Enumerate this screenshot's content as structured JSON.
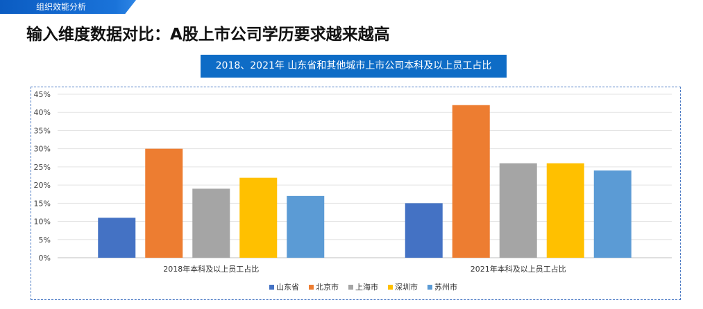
{
  "section_tag": "组织效能分析",
  "page_title": "输入维度数据对比：A股上市公司学历要求越来越高",
  "chart_data": {
    "type": "bar",
    "title": "2018、2021年 山东省和其他城市上市公司本科及以上员工占比",
    "categories": [
      "2018年本科及以上员工占比",
      "2021年本科及以上员工占比"
    ],
    "series": [
      {
        "name": "山东省",
        "color": "#4472c4",
        "values": [
          11,
          15
        ]
      },
      {
        "name": "北京市",
        "color": "#ed7d31",
        "values": [
          30,
          42
        ]
      },
      {
        "name": "上海市",
        "color": "#a5a5a5",
        "values": [
          19,
          26
        ]
      },
      {
        "name": "深圳市",
        "color": "#ffc000",
        "values": [
          22,
          26
        ]
      },
      {
        "name": "苏州市",
        "color": "#5b9bd5",
        "values": [
          17,
          24
        ]
      }
    ],
    "ylim": [
      0,
      45
    ],
    "yticks": [
      0,
      5,
      10,
      15,
      20,
      25,
      30,
      35,
      40,
      45
    ],
    "ytick_labels": [
      "0%",
      "5%",
      "10%",
      "15%",
      "20%",
      "25%",
      "30%",
      "35%",
      "40%",
      "45%"
    ],
    "grid": true,
    "legend": "bottom"
  }
}
